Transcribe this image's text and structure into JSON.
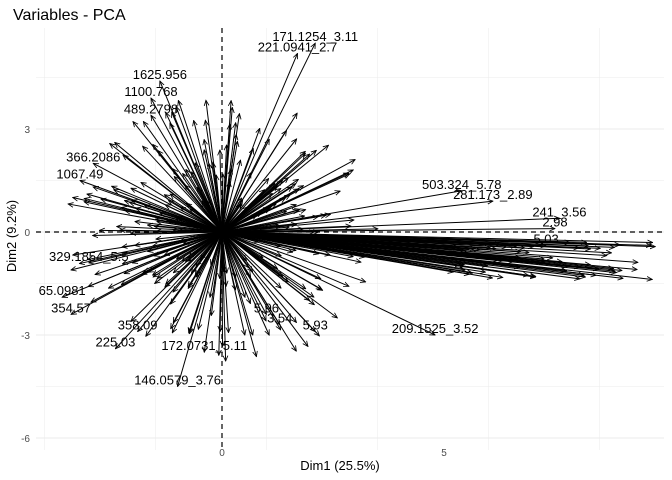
{
  "chart_data": {
    "type": "scatter",
    "title": "Variables - PCA",
    "xlabel": "Dim1 (25.5%)",
    "ylabel": "Dim2 (9.2%)",
    "xlim": [
      -4.4,
      10.0
    ],
    "ylim": [
      -6.5,
      5.9
    ],
    "xticks": [
      0,
      5
    ],
    "yticks": [
      3,
      0,
      -3,
      -6
    ],
    "grid": true,
    "legend": "none",
    "reference_lines": {
      "x": 0,
      "y": 0,
      "style": "dashed"
    },
    "arrows_origin": [
      0,
      0
    ],
    "labeled_arrows": [
      {
        "label": "171.1254_3.11",
        "x": 2.1,
        "y": 5.5
      },
      {
        "label": "221.0941_2.7",
        "x": 1.7,
        "y": 5.2
      },
      {
        "label": "1625.956",
        "x": -1.4,
        "y": 4.4
      },
      {
        "label": "1100.768",
        "x": -1.6,
        "y": 3.9
      },
      {
        "label": "489.2798",
        "x": -1.6,
        "y": 3.4
      },
      {
        "label": "366.2086",
        "x": -2.9,
        "y": 2.0
      },
      {
        "label": "1067.49",
        "x": -3.2,
        "y": 1.5
      },
      {
        "label": "503.324_5.78",
        "x": 5.4,
        "y": 1.2
      },
      {
        "label": "281.173_2.89",
        "x": 6.1,
        "y": 0.9
      },
      {
        "label": "241_3.56",
        "x": 7.6,
        "y": 0.4
      },
      {
        "label": "2.98",
        "x": 7.5,
        "y": 0.1
      },
      {
        "label": "5.03",
        "x": 7.3,
        "y": -0.4
      },
      {
        "label": "329.1854_5.5",
        "x": -3.0,
        "y": -0.9
      },
      {
        "label": "65.0981",
        "x": -3.6,
        "y": -1.9
      },
      {
        "label": "354.57",
        "x": -3.4,
        "y": -2.4
      },
      {
        "label": "358.09",
        "x": -1.9,
        "y": -2.9
      },
      {
        "label": "5.96",
        "x": 1.0,
        "y": -2.4
      },
      {
        "label": "5.93",
        "x": 2.1,
        "y": -2.9
      },
      {
        "label": "3.54",
        "x": 1.3,
        "y": -2.7
      },
      {
        "label": "209.1525_3.52",
        "x": 4.8,
        "y": -3.0
      },
      {
        "label": "225.03",
        "x": -2.4,
        "y": -3.4
      },
      {
        "label": "172.0731_5.11",
        "x": -0.4,
        "y": -3.5
      },
      {
        "label": "146.0579_3.76",
        "x": -1.0,
        "y": -4.5
      }
    ]
  }
}
